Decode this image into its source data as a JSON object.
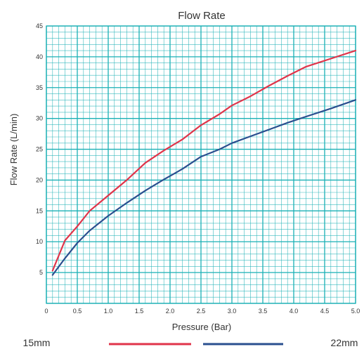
{
  "chart_data": {
    "type": "line",
    "title": "Flow Rate",
    "xlabel": "Pressure (Bar)",
    "ylabel": "Flow Rate (L/min)",
    "xlim": [
      0,
      5.0
    ],
    "ylim": [
      0,
      45
    ],
    "x_ticks": [
      "0",
      "0.5",
      "1.0",
      "1.5",
      "2.0",
      "2.5",
      "3.0",
      "3.5",
      "4.0",
      "4.5",
      "5.0"
    ],
    "y_ticks": [
      "5",
      "10",
      "15",
      "20",
      "25",
      "30",
      "35",
      "40",
      "45"
    ],
    "grid": true,
    "legend_position": "bottom",
    "series": [
      {
        "name": "15mm",
        "color": "#e0344a",
        "x": [
          0.1,
          0.3,
          0.5,
          0.7,
          1.0,
          1.3,
          1.6,
          1.9,
          2.2,
          2.5,
          2.8,
          3.0,
          3.3,
          3.6,
          3.9,
          4.2,
          4.6,
          5.0
        ],
        "y": [
          5.3,
          10.2,
          12.5,
          15.0,
          17.5,
          20.0,
          22.8,
          24.8,
          26.6,
          28.9,
          30.7,
          32.1,
          33.6,
          35.3,
          36.9,
          38.4,
          39.7,
          41.0
        ]
      },
      {
        "name": "22mm",
        "color": "#2a4f8f",
        "x": [
          0.1,
          0.3,
          0.5,
          0.7,
          1.0,
          1.3,
          1.6,
          1.9,
          2.2,
          2.5,
          2.8,
          3.0,
          3.3,
          3.6,
          3.9,
          4.2,
          4.6,
          5.0
        ],
        "y": [
          4.6,
          7.3,
          9.8,
          11.8,
          14.2,
          16.3,
          18.3,
          20.1,
          21.8,
          23.8,
          25.0,
          26.0,
          27.1,
          28.2,
          29.3,
          30.3,
          31.6,
          33.0
        ]
      }
    ],
    "grid_color": "#1ab0b5"
  }
}
